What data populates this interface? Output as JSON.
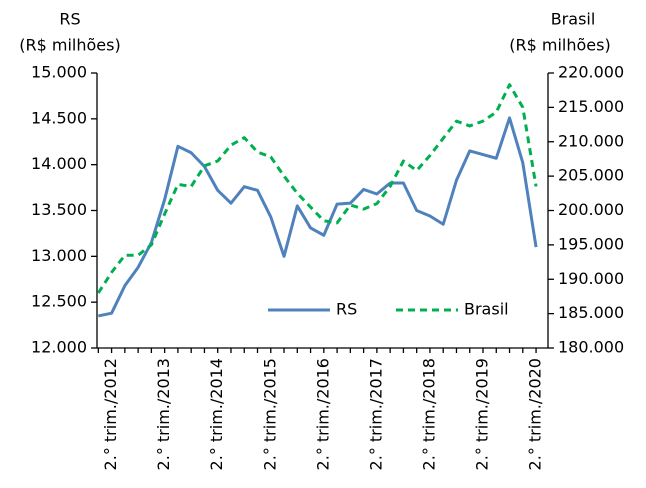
{
  "chart_data": {
    "type": "line",
    "ylabel": [
      "RS",
      "(R$ milhões)"
    ],
    "y2label": [
      "Brasil",
      "(R$ milhões)"
    ],
    "categories": [
      null,
      "2.° trim./2012",
      null,
      null,
      null,
      "2.° trim./2013",
      null,
      null,
      null,
      "2.° trim./2014",
      null,
      null,
      null,
      "2.° trim./2015",
      null,
      null,
      null,
      "2.° trim./2016",
      null,
      null,
      null,
      "2.° trim./2017",
      null,
      null,
      null,
      "2.° trim./2018",
      null,
      null,
      null,
      "2.° trim./2019",
      null,
      null,
      null,
      "2.° trim./2020"
    ],
    "series": [
      {
        "name": "RS",
        "color": "#4f81bd",
        "dash": false,
        "values": [
          12350,
          12380,
          12680,
          12880,
          13150,
          13620,
          14200,
          14130,
          13980,
          13720,
          13580,
          13760,
          13720,
          13430,
          13000,
          13550,
          13310,
          13230,
          13570,
          13580,
          13730,
          13680,
          13800,
          13800,
          13500,
          13440,
          13350,
          13830,
          14150,
          14110,
          14070,
          14510,
          14020,
          13100
        ]
      },
      {
        "name": "Brasil",
        "color": "#00b050",
        "dash": true,
        "axis": "y2",
        "values": [
          188000,
          191000,
          193500,
          193500,
          195000,
          199500,
          203800,
          203500,
          206500,
          207200,
          209500,
          210600,
          208500,
          207800,
          205000,
          202500,
          200500,
          198500,
          198200,
          200800,
          200200,
          201000,
          203500,
          207200,
          205800,
          208000,
          210500,
          213000,
          212300,
          213000,
          214300,
          218300,
          215000,
          203500
        ]
      }
    ],
    "ylim": [
      12000,
      15000
    ],
    "yticks": [
      {
        "value": 12000,
        "label": "12.000"
      },
      {
        "value": 12500,
        "label": "12.500"
      },
      {
        "value": 13000,
        "label": "13.000"
      },
      {
        "value": 13500,
        "label": "13.500"
      },
      {
        "value": 14000,
        "label": "14.000"
      },
      {
        "value": 14500,
        "label": "14.500"
      },
      {
        "value": 15000,
        "label": "15.000"
      }
    ],
    "y2lim": [
      180000,
      220000
    ],
    "y2ticks": [
      {
        "value": 180000,
        "label": "180.000"
      },
      {
        "value": 185000,
        "label": "185.000"
      },
      {
        "value": 190000,
        "label": "190.000"
      },
      {
        "value": 195000,
        "label": "195.000"
      },
      {
        "value": 200000,
        "label": "200.000"
      },
      {
        "value": 205000,
        "label": "205.000"
      },
      {
        "value": 210000,
        "label": "210.000"
      },
      {
        "value": 215000,
        "label": "215.000"
      },
      {
        "value": 220000,
        "label": "220.000"
      }
    ],
    "legend": "lower right",
    "grid": false
  }
}
